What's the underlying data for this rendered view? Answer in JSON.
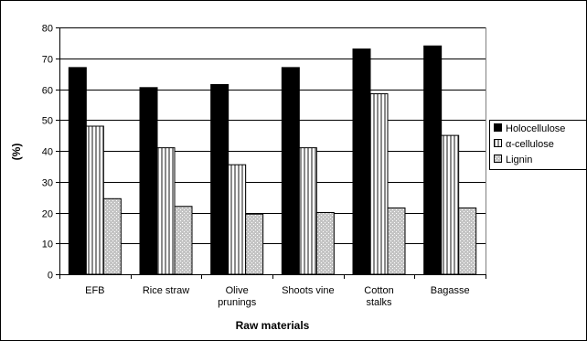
{
  "chart_data": {
    "type": "bar",
    "title": "",
    "xlabel": "Raw materials",
    "ylabel": "(%)",
    "ylim": [
      0,
      80
    ],
    "yticks": [
      0,
      10,
      20,
      30,
      40,
      50,
      60,
      70,
      80
    ],
    "grid": "horizontal",
    "legend_position": "right",
    "categories": [
      [
        "EFB"
      ],
      [
        "Rice straw"
      ],
      [
        "Olive",
        "prunings"
      ],
      [
        "Shoots vine"
      ],
      [
        "Cotton",
        "stalks"
      ],
      [
        "Bagasse"
      ]
    ],
    "series": [
      {
        "name": "Holocellulose",
        "color": "#000000",
        "pattern": "solid",
        "values": [
          67,
          60.5,
          61.5,
          67,
          73,
          74
        ]
      },
      {
        "name": "α-cellulose",
        "color": "#ffffff",
        "pattern": "vertical-stripes",
        "values": [
          48,
          41,
          35.5,
          41,
          58.5,
          45
        ]
      },
      {
        "name": "Lignin",
        "color": "#c0c0c0",
        "pattern": "dots",
        "values": [
          24.5,
          22,
          19.5,
          20,
          21.5,
          21.5
        ]
      }
    ]
  }
}
